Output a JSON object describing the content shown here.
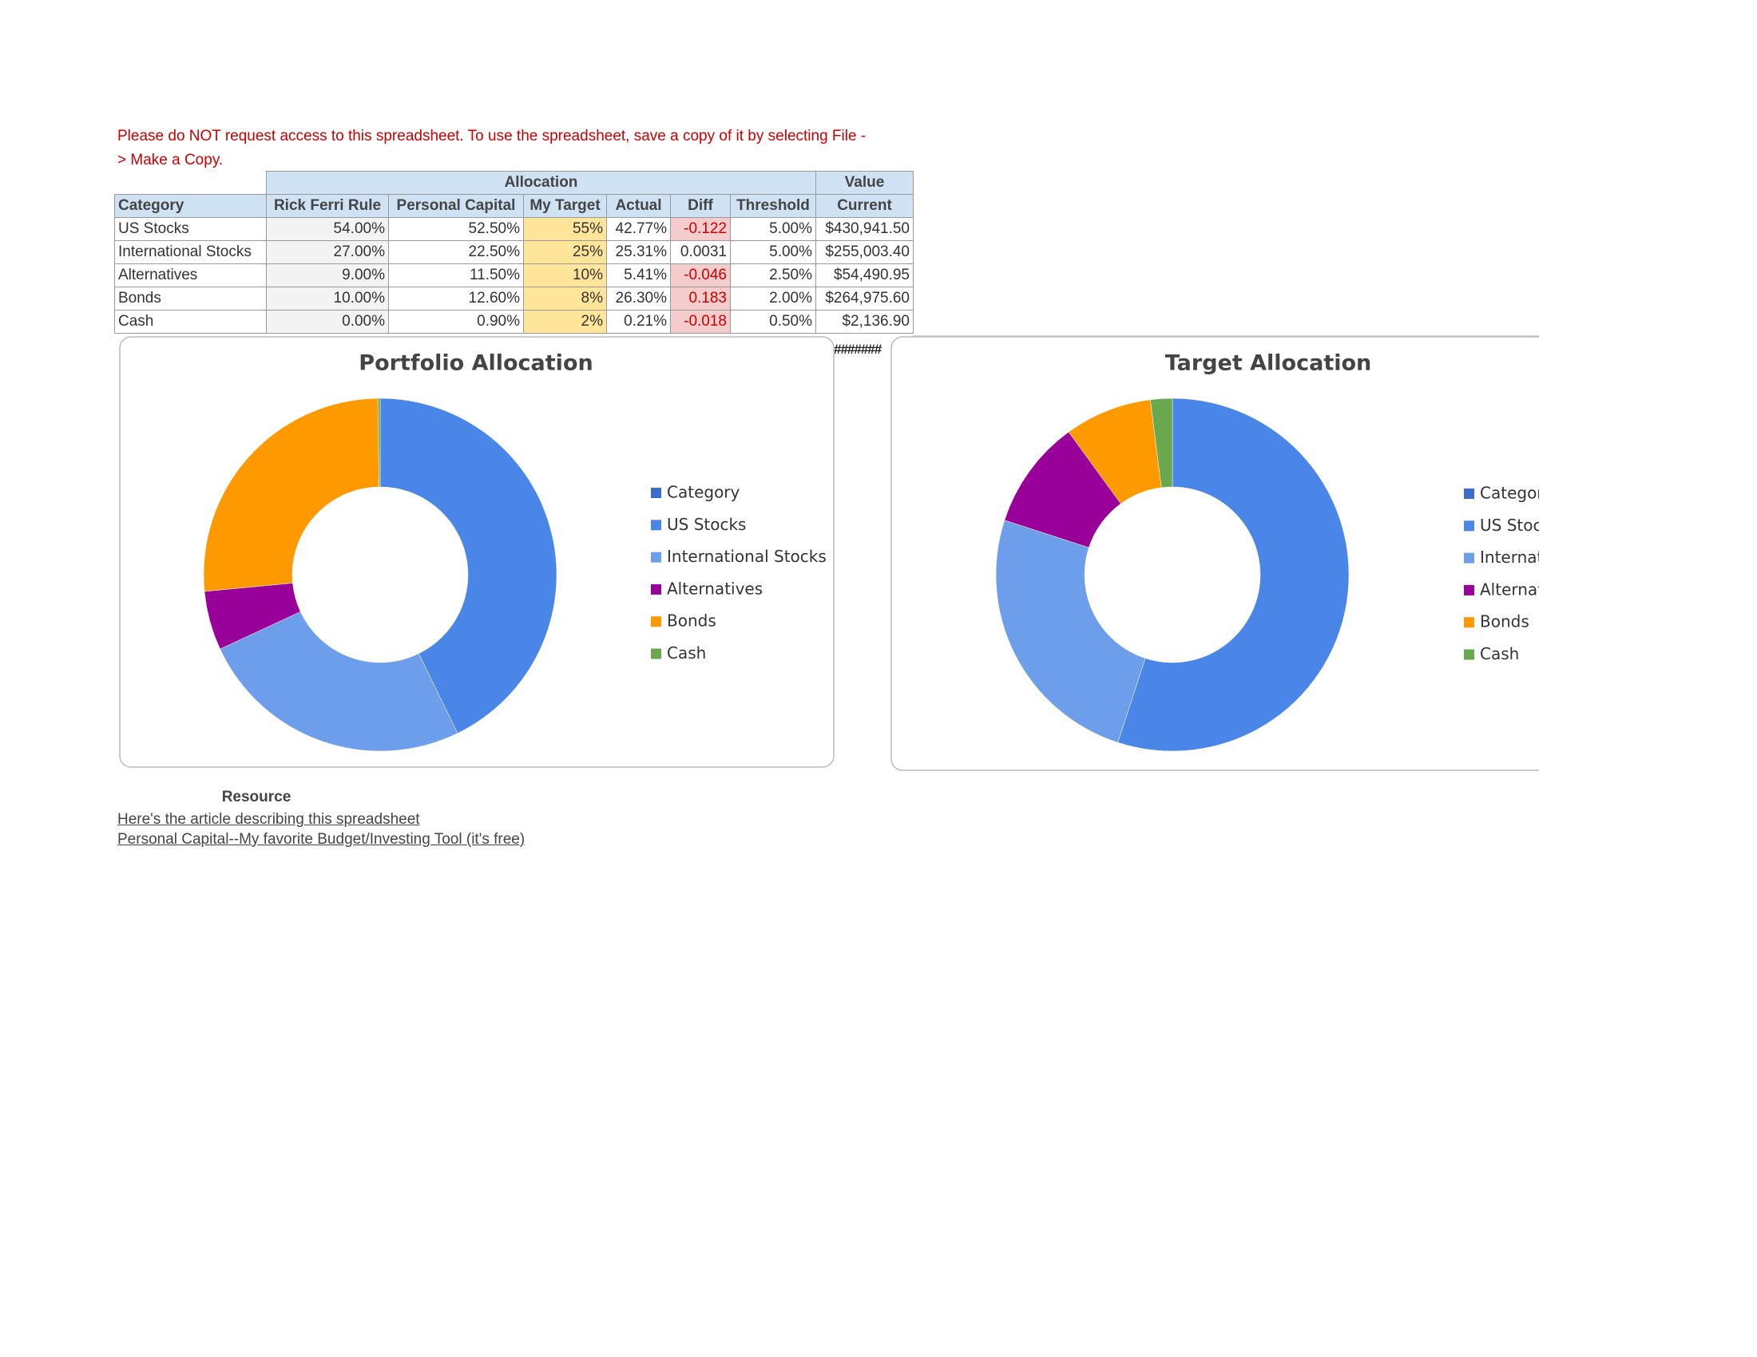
{
  "notice": "Please do NOT request access to this spreadsheet. To use the spreadsheet, save a copy of it by selecting File -> Make a Copy.",
  "table": {
    "group_headers": [
      "Allocation",
      "Value"
    ],
    "columns": [
      "Category",
      "Rick Ferri Rule",
      "Personal Capital",
      "My Target",
      "Actual",
      "Diff",
      "Threshold",
      "Current"
    ],
    "rows": [
      [
        "US Stocks",
        "54.00%",
        "52.50%",
        "55%",
        "42.77%",
        "-0.122",
        "5.00%",
        "$430,941.50"
      ],
      [
        "International Stocks",
        "27.00%",
        "22.50%",
        "25%",
        "25.31%",
        "0.0031",
        "5.00%",
        "$255,003.40"
      ],
      [
        "Alternatives",
        "9.00%",
        "11.50%",
        "10%",
        "5.41%",
        "-0.046",
        "2.50%",
        "$54,490.95"
      ],
      [
        "Bonds",
        "10.00%",
        "12.60%",
        "8%",
        "26.30%",
        "0.183",
        "2.00%",
        "$264,975.60"
      ],
      [
        "Cash",
        "0.00%",
        "0.90%",
        "2%",
        "0.21%",
        "-0.018",
        "0.50%",
        "$2,136.90"
      ]
    ]
  },
  "overflow_cell": "#######",
  "chart_data": [
    {
      "type": "pie",
      "title": "Portfolio Allocation",
      "categories": [
        "Category",
        "US Stocks",
        "International Stocks",
        "Alternatives",
        "Bonds",
        "Cash"
      ],
      "values": [
        null,
        42.77,
        25.31,
        5.41,
        26.3,
        0.21
      ],
      "colors": [
        "#3c6ccc",
        "#4a86e8",
        "#6d9eeb",
        "#990099",
        "#ff9900",
        "#6aa84f"
      ]
    },
    {
      "type": "pie",
      "title": "Target Allocation",
      "categories": [
        "Category",
        "US Stocks",
        "International Stocks",
        "Alternatives",
        "Bonds",
        "Cash"
      ],
      "values": [
        null,
        55,
        25,
        10,
        8,
        2
      ],
      "colors": [
        "#3c6ccc",
        "#4a86e8",
        "#6d9eeb",
        "#990099",
        "#ff9900",
        "#6aa84f"
      ]
    }
  ],
  "resource": {
    "title": "Resource",
    "links": [
      "Here's the article describing this spreadsheet",
      "Personal Capital--My favorite Budget/Investing Tool (it's free)"
    ]
  }
}
